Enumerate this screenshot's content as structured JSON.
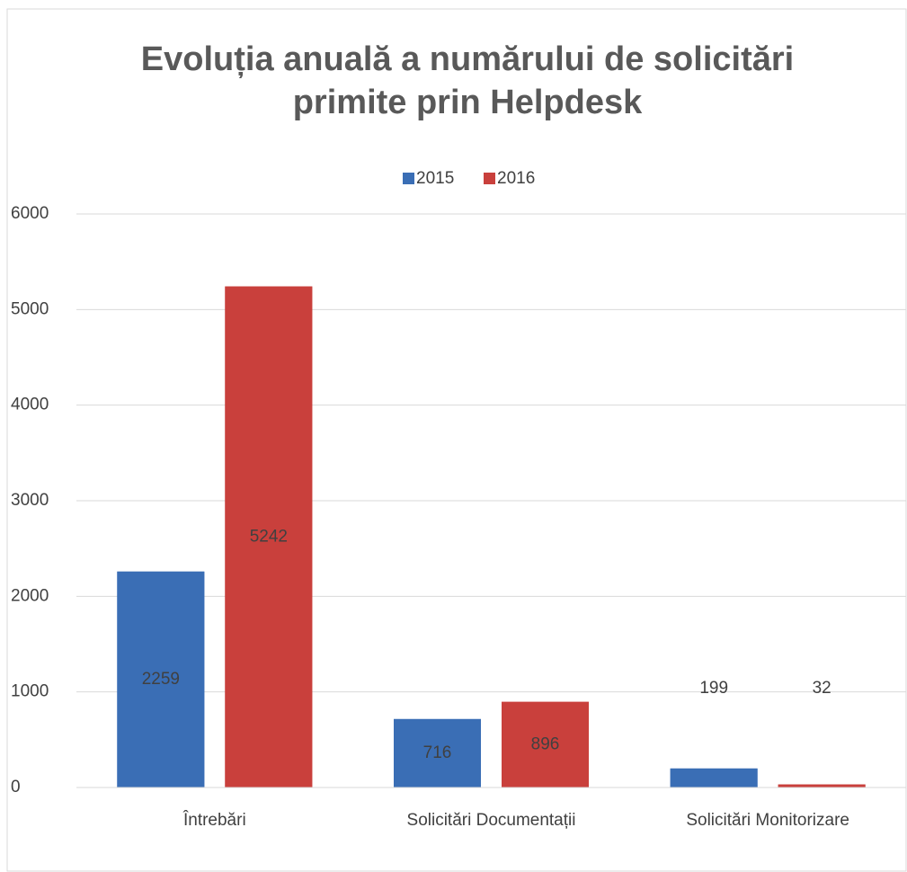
{
  "chart_data": {
    "type": "bar",
    "title": [
      "Evoluția anuală a numărului de solicitări",
      "primite prin Helpdesk"
    ],
    "categories": [
      "Întrebări",
      "Solicitări Documentații",
      "Solicitări Monitorizare"
    ],
    "series": [
      {
        "name": "2015",
        "color": "#3a6eb5",
        "values": [
          2259,
          716,
          199
        ]
      },
      {
        "name": "2016",
        "color": "#c9403c",
        "values": [
          5242,
          896,
          32
        ]
      }
    ],
    "ylim": [
      0,
      6000
    ],
    "yticks": [
      0,
      1000,
      2000,
      3000,
      4000,
      5000,
      6000
    ],
    "grid": true,
    "legend": "top"
  }
}
